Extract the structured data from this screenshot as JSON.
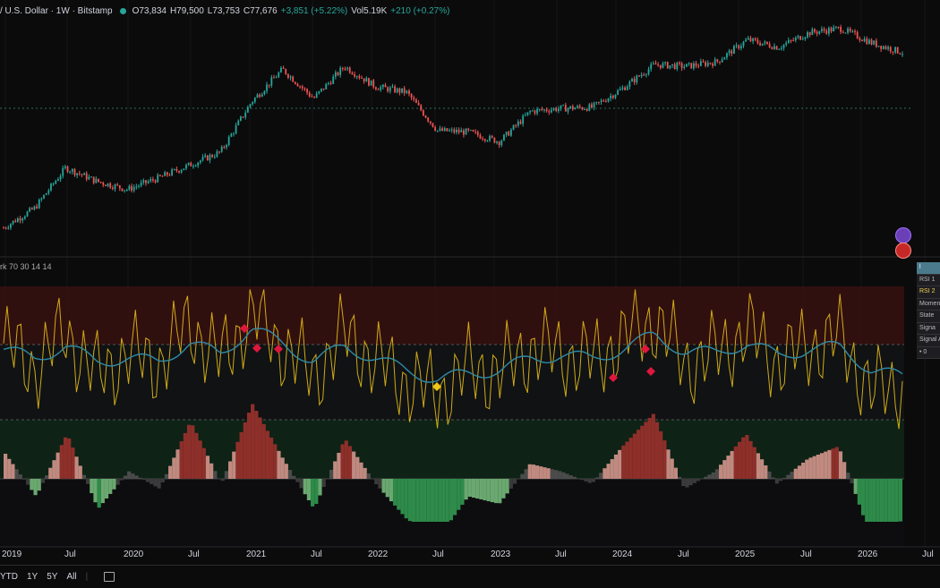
{
  "header": {
    "symbol": "/ U.S. Dollar · 1W · Bitstamp",
    "open": "O73,834",
    "high": "H79,500",
    "low": "L73,753",
    "close": "C77,676",
    "change": "+3,851 (+5.22%)",
    "volume": "Vol5.19K",
    "vol_change": "+210 (+0.27%)"
  },
  "indicator": {
    "legend": "rk 70 30 14 14"
  },
  "status_table": {
    "header": "l",
    "rows": [
      "RSI 1",
      "RSI 2",
      "Momentu",
      "State",
      "Signa",
      "Signal A",
      "• 0"
    ]
  },
  "time_axis": [
    "2019",
    "Jul",
    "2020",
    "Jul",
    "2021",
    "Jul",
    "2022",
    "Jul",
    "2023",
    "Jul",
    "2024",
    "Jul",
    "2025",
    "Jul",
    "2026",
    "Jul"
  ],
  "range_buttons": [
    "YTD",
    "1Y",
    "5Y",
    "All"
  ],
  "icons": {
    "refresh": "refresh-icon",
    "flag": "flag-icon",
    "calendar": "calendar-range-icon"
  },
  "colors": {
    "up": "#26a69a",
    "down": "#ef5350",
    "accent": "#f0c419"
  },
  "chart_data": [
    {
      "type": "candlestick",
      "title": "U.S. Dollar · 1W · Bitstamp",
      "x": [
        "2019-01",
        "2019-04",
        "2019-07",
        "2019-10",
        "2020-01",
        "2020-04",
        "2020-07",
        "2020-10",
        "2021-01",
        "2021-04",
        "2021-07",
        "2021-10",
        "2022-01",
        "2022-04",
        "2022-07",
        "2022-10",
        "2023-01",
        "2023-04",
        "2023-07",
        "2023-10",
        "2024-01",
        "2024-04",
        "2024-07",
        "2024-10",
        "2025-01",
        "2025-04",
        "2025-07",
        "2025-10",
        "2026-01",
        "2026-03"
      ],
      "values": [
        3700,
        5200,
        10500,
        8300,
        7200,
        8800,
        11000,
        13800,
        33000,
        58000,
        35000,
        61000,
        43000,
        39000,
        20000,
        19500,
        16500,
        28000,
        29500,
        30000,
        42000,
        63000,
        61000,
        66000,
        97000,
        85000,
        110000,
        118000,
        92000,
        77676
      ],
      "last": {
        "open": 73834,
        "high": 79500,
        "low": 73753,
        "close": 77676
      }
    },
    {
      "type": "line",
      "title": "rk 70 30 14 14",
      "ylim": [
        0,
        100
      ],
      "bands": [
        30,
        70
      ],
      "series": [
        {
          "color": "#f0c419",
          "values": [
            62,
            45,
            70,
            40,
            55,
            48,
            75,
            50,
            82,
            60,
            40,
            68,
            50,
            36,
            28,
            45,
            42,
            58,
            55,
            50,
            65,
            78,
            48,
            55,
            70,
            50,
            60,
            65,
            30,
            35
          ]
        },
        {
          "color": "#2e8aa8",
          "values": [
            58,
            52,
            60,
            50,
            52,
            50,
            62,
            55,
            72,
            62,
            50,
            60,
            52,
            44,
            38,
            42,
            44,
            52,
            54,
            52,
            58,
            68,
            56,
            56,
            62,
            54,
            58,
            60,
            44,
            40
          ]
        }
      ],
      "signals": [
        {
          "x": "2021-01",
          "color": "#e0173c"
        },
        {
          "x": "2021-03",
          "color": "#e0173c"
        },
        {
          "x": "2021-05",
          "color": "#e0173c"
        },
        {
          "x": "2022-06",
          "color": "#f0c419"
        },
        {
          "x": "2023-12",
          "color": "#e0173c"
        },
        {
          "x": "2024-03",
          "color": "#e0173c"
        },
        {
          "x": "2024-04",
          "color": "#e0173c"
        }
      ]
    }
  ]
}
